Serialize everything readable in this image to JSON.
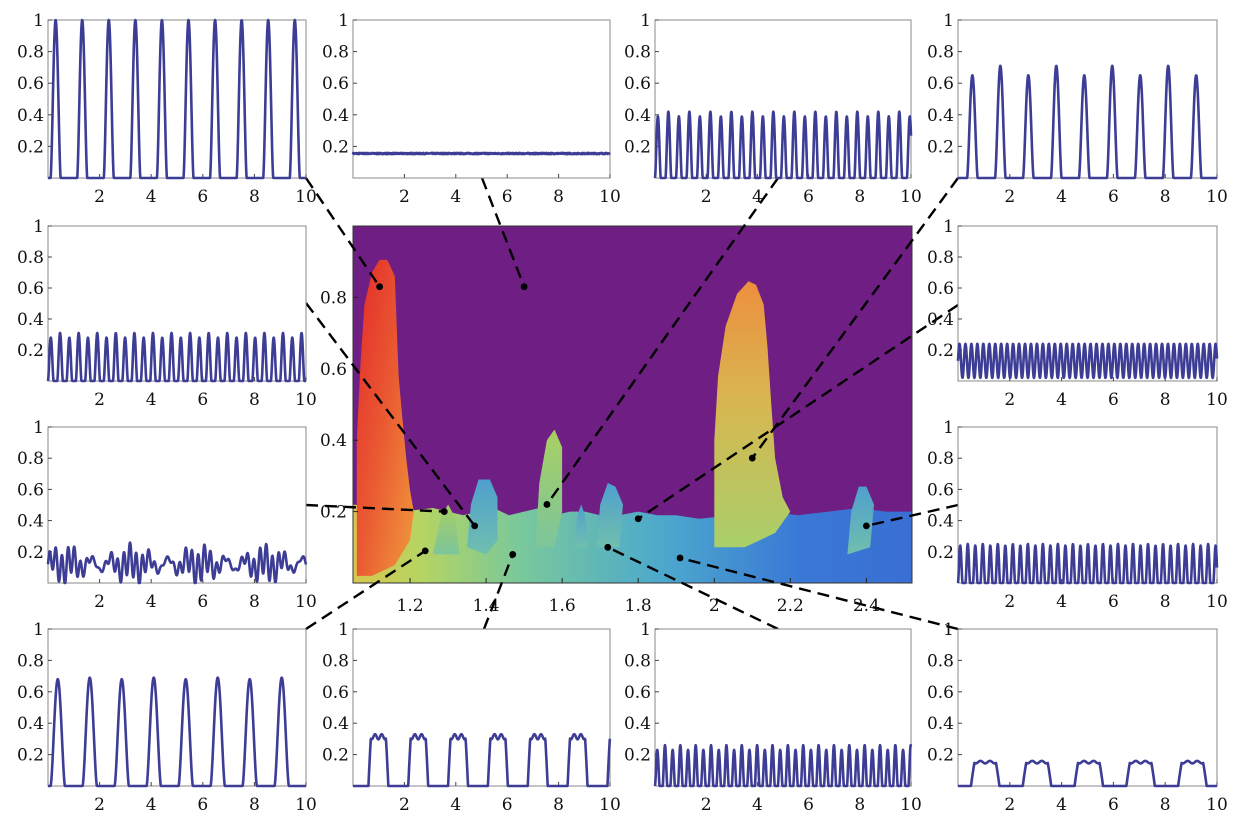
{
  "chart_data": [
    {
      "id": "main",
      "type": "heatmap",
      "title": "",
      "xlabel": "",
      "ylabel": "",
      "xlim": [
        1.05,
        2.52
      ],
      "ylim": [
        0,
        1
      ],
      "xticks": [
        1.2,
        1.4,
        1.6,
        1.8,
        2,
        2.2,
        2.4
      ],
      "xtick_labels": [
        "1.2",
        "1.4",
        "1.6",
        "1.8",
        "2",
        "2.2",
        "2.4"
      ],
      "yticks": [
        0.2,
        0.4,
        0.6,
        0.8
      ],
      "ytick_labels": [
        "0.2",
        "0.4",
        "0.6",
        "0.8"
      ],
      "background_color": "#6f1f83",
      "colormap": [
        "#2a5fd8",
        "#3f9fd0",
        "#7cc7a0",
        "#b9d564",
        "#e8b24a",
        "#ee6b33",
        "#e0282a"
      ],
      "sample_points": [
        {
          "x": 1.12,
          "y": 0.83
        },
        {
          "x": 1.5,
          "y": 0.83
        },
        {
          "x": 1.56,
          "y": 0.22
        },
        {
          "x": 2.1,
          "y": 0.35
        },
        {
          "x": 1.37,
          "y": 0.16
        },
        {
          "x": 1.8,
          "y": 0.18
        },
        {
          "x": 1.29,
          "y": 0.2
        },
        {
          "x": 2.4,
          "y": 0.16
        },
        {
          "x": 1.24,
          "y": 0.09
        },
        {
          "x": 1.47,
          "y": 0.08
        },
        {
          "x": 1.72,
          "y": 0.1
        },
        {
          "x": 1.91,
          "y": 0.07
        }
      ]
    },
    {
      "id": "p1",
      "type": "line",
      "xlim": [
        0,
        10
      ],
      "ylim": [
        0,
        1
      ],
      "xticks": [
        "2",
        "4",
        "6",
        "8",
        "10"
      ],
      "yticks": [
        "0.2",
        "0.4",
        "0.6",
        "0.8",
        "1"
      ],
      "series": [
        {
          "wave": "spike",
          "period": 1.03,
          "phase": 0.1,
          "amp": 1.0,
          "amp2": 1.0,
          "base": 0.0,
          "duty": 0.38
        }
      ]
    },
    {
      "id": "p2",
      "type": "line",
      "xlim": [
        0,
        10
      ],
      "ylim": [
        0,
        1
      ],
      "xticks": [
        "2",
        "4",
        "6",
        "8",
        "10"
      ],
      "yticks": [
        "0.2",
        "0.4",
        "0.6",
        "0.8",
        "1"
      ],
      "series": [
        {
          "wave": "flat",
          "level": 0.155,
          "noise": 0.004
        }
      ]
    },
    {
      "id": "p3",
      "type": "line",
      "xlim": [
        0,
        10
      ],
      "ylim": [
        0,
        1
      ],
      "xticks": [
        "2",
        "4",
        "6",
        "8",
        "10"
      ],
      "yticks": [
        "0.2",
        "0.4",
        "0.6",
        "0.8",
        "1"
      ],
      "series": [
        {
          "wave": "spike",
          "period": 0.41,
          "phase": 0.0,
          "amp": 0.39,
          "amp2": 0.42,
          "base": 0.0,
          "duty": 0.55
        }
      ]
    },
    {
      "id": "p4",
      "type": "line",
      "xlim": [
        0,
        10
      ],
      "ylim": [
        0,
        1
      ],
      "xticks": [
        "2",
        "4",
        "6",
        "8",
        "10"
      ],
      "yticks": [
        "0.2",
        "0.4",
        "0.6",
        "0.8",
        "1"
      ],
      "series": [
        {
          "wave": "spike",
          "period": 1.08,
          "phase": 0.35,
          "amp": 0.65,
          "amp2": 0.71,
          "base": 0.0,
          "duty": 0.38
        }
      ]
    },
    {
      "id": "p5",
      "type": "line",
      "xlim": [
        0,
        10
      ],
      "ylim": [
        0,
        1
      ],
      "xticks": [
        "2",
        "4",
        "6",
        "8",
        "10"
      ],
      "yticks": [
        "0.2",
        "0.4",
        "0.6",
        "0.8",
        "1"
      ],
      "series": [
        {
          "wave": "spike",
          "period": 0.36,
          "phase": 0.0,
          "amp": 0.28,
          "amp2": 0.31,
          "base": 0.0,
          "duty": 0.6
        }
      ]
    },
    {
      "id": "p6",
      "type": "line",
      "xlim": [
        0,
        10
      ],
      "ylim": [
        0,
        1
      ],
      "xticks": [
        "2",
        "4",
        "6",
        "8",
        "10"
      ],
      "yticks": [
        "0.2",
        "0.4",
        "0.6",
        "0.8",
        "1"
      ],
      "series": [
        {
          "wave": "sine",
          "period": 0.23,
          "amp": 0.11,
          "base": 0.13
        }
      ]
    },
    {
      "id": "p7",
      "type": "line",
      "xlim": [
        0,
        10
      ],
      "ylim": [
        0,
        1
      ],
      "xticks": [
        "2",
        "4",
        "6",
        "8",
        "10"
      ],
      "yticks": [
        "0.2",
        "0.4",
        "0.6",
        "0.8",
        "1"
      ],
      "series": [
        {
          "wave": "beat",
          "period": 0.24,
          "amp": 0.1,
          "base": 0.12,
          "beat_period": 2.6
        }
      ]
    },
    {
      "id": "p8",
      "type": "line",
      "xlim": [
        0,
        10
      ],
      "ylim": [
        0,
        1
      ],
      "xticks": [
        "2",
        "4",
        "6",
        "8",
        "10"
      ],
      "yticks": [
        "0.2",
        "0.4",
        "0.6",
        "0.8",
        "1"
      ],
      "series": [
        {
          "wave": "spike",
          "period": 0.29,
          "phase": 0.0,
          "amp": 0.24,
          "amp2": 0.25,
          "base": 0.0,
          "duty": 0.6
        }
      ]
    },
    {
      "id": "p9",
      "type": "line",
      "xlim": [
        0,
        10
      ],
      "ylim": [
        0,
        1
      ],
      "xticks": [
        "2",
        "4",
        "6",
        "8",
        "10"
      ],
      "yticks": [
        "0.2",
        "0.4",
        "0.6",
        "0.8",
        "1"
      ],
      "series": [
        {
          "wave": "spike",
          "period": 1.24,
          "phase": 0.1,
          "amp": 0.68,
          "amp2": 0.69,
          "base": 0.0,
          "duty": 0.45
        }
      ]
    },
    {
      "id": "p10",
      "type": "line",
      "xlim": [
        0,
        10
      ],
      "ylim": [
        0,
        1
      ],
      "xticks": [
        "2",
        "4",
        "6",
        "8",
        "10"
      ],
      "yticks": [
        "0.2",
        "0.4",
        "0.6",
        "0.8",
        "1"
      ],
      "series": [
        {
          "wave": "plateau",
          "period": 1.55,
          "phase": 0.6,
          "amp": 0.33,
          "base": 0.0,
          "duty": 0.5
        }
      ]
    },
    {
      "id": "p11",
      "type": "line",
      "xlim": [
        0,
        10
      ],
      "ylim": [
        0,
        1
      ],
      "xticks": [
        "2",
        "4",
        "6",
        "8",
        "10"
      ],
      "yticks": [
        "0.2",
        "0.4",
        "0.6",
        "0.8",
        "1"
      ],
      "series": [
        {
          "wave": "spike",
          "period": 0.3,
          "phase": 0.0,
          "amp": 0.23,
          "amp2": 0.26,
          "base": 0.0,
          "duty": 0.6
        }
      ]
    },
    {
      "id": "p12",
      "type": "line",
      "xlim": [
        0,
        10
      ],
      "ylim": [
        0,
        1
      ],
      "xticks": [
        "2",
        "4",
        "6",
        "8",
        "10"
      ],
      "yticks": [
        "0.2",
        "0.4",
        "0.6",
        "0.8",
        "1"
      ],
      "series": [
        {
          "wave": "plateau",
          "period": 2.0,
          "phase": 0.5,
          "amp": 0.16,
          "base": 0.0,
          "duty": 0.55
        }
      ]
    }
  ],
  "style": {
    "line_color": "#3d3d96",
    "frame_color": "#888888",
    "link_color": "#000000"
  }
}
